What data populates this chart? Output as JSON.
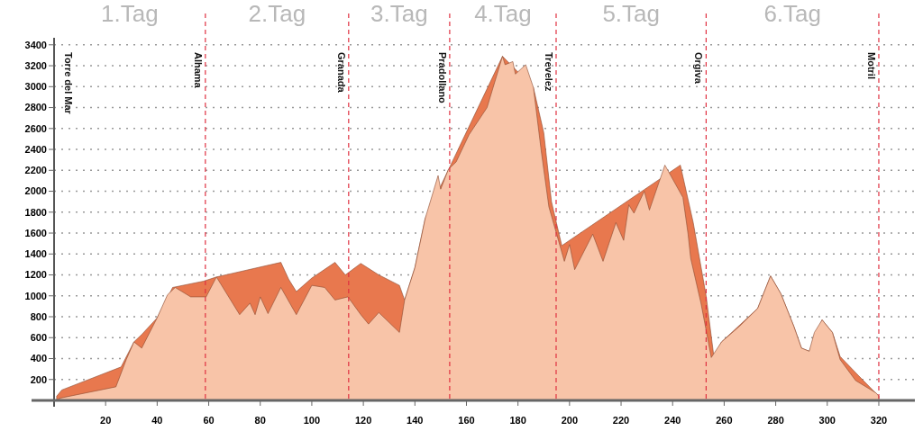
{
  "chart_data": {
    "type": "area",
    "xlim": [
      0,
      334
    ],
    "ylim": [
      0,
      3450
    ],
    "xticks": [
      20,
      40,
      60,
      80,
      100,
      120,
      140,
      160,
      180,
      200,
      220,
      240,
      260,
      280,
      300,
      320
    ],
    "yticks": [
      200,
      400,
      600,
      800,
      1000,
      1200,
      1400,
      1600,
      1800,
      2000,
      2200,
      2400,
      2600,
      2800,
      3000,
      3200,
      3400
    ],
    "grid": "y",
    "series": [
      {
        "color": "#e8784e",
        "x": [
          1,
          3,
          26,
          31,
          34,
          40,
          46,
          58,
          63,
          88,
          91,
          94,
          100,
          109,
          113,
          119,
          126,
          134,
          136,
          140,
          144,
          174,
          186,
          190,
          193,
          197,
          243,
          248,
          253,
          256,
          259,
          273,
          278,
          282,
          287,
          290,
          293,
          298,
          302,
          305,
          312,
          320
        ],
        "values": [
          40,
          100,
          320,
          560,
          630,
          790,
          1080,
          1140,
          1180,
          1320,
          1160,
          1040,
          1170,
          1320,
          1200,
          1310,
          1200,
          1100,
          960,
          1270,
          1740,
          3290,
          2990,
          2560,
          1900,
          1480,
          2250,
          1700,
          1000,
          420,
          560,
          880,
          1190,
          1020,
          710,
          500,
          470,
          770,
          650,
          420,
          240,
          40
        ]
      },
      {
        "color": "#f8c4a8",
        "x": [
          2,
          24,
          28,
          31,
          34,
          40,
          44,
          47,
          53,
          59,
          63,
          72,
          76,
          78,
          80,
          83,
          88,
          94,
          100,
          105,
          109,
          114,
          119,
          122,
          126,
          134,
          136,
          140,
          144,
          149,
          150,
          153,
          156,
          161,
          168,
          174,
          175,
          178,
          179,
          183,
          186,
          189,
          192,
          195,
          198,
          200,
          202,
          209,
          213,
          218,
          221,
          223,
          225,
          229,
          231,
          237,
          244,
          246,
          247,
          251,
          255,
          259,
          266,
          273,
          278,
          282,
          287,
          290,
          293,
          295,
          298,
          302,
          305,
          311,
          319,
          320
        ],
        "values": [
          20,
          130,
          390,
          560,
          500,
          790,
          1010,
          1080,
          990,
          990,
          1180,
          820,
          930,
          820,
          990,
          830,
          1080,
          820,
          1100,
          1080,
          960,
          990,
          820,
          730,
          840,
          650,
          960,
          1270,
          1740,
          2150,
          2020,
          2210,
          2280,
          2540,
          2800,
          3290,
          3210,
          3240,
          3120,
          3210,
          2990,
          2390,
          1850,
          1590,
          1330,
          1490,
          1250,
          1590,
          1330,
          1700,
          1530,
          1870,
          1790,
          2000,
          1820,
          2250,
          1940,
          1590,
          1360,
          930,
          410,
          560,
          710,
          880,
          1190,
          1020,
          710,
          500,
          470,
          650,
          770,
          650,
          390,
          190,
          70,
          40
        ]
      }
    ],
    "ref_lines": [
      {
        "axis": "x",
        "value": 58.7,
        "label": "Alhama",
        "color": "#e03040",
        "line_style": "dashed"
      },
      {
        "axis": "x",
        "value": 114.3,
        "label": "Granada",
        "color": "#e03040",
        "line_style": "dashed"
      },
      {
        "axis": "x",
        "value": 153.5,
        "label": "Pradollano",
        "color": "#e03040",
        "line_style": "dashed"
      },
      {
        "axis": "x",
        "value": 194.8,
        "label": "Trevelez",
        "color": "#e03040",
        "line_style": "dashed"
      },
      {
        "axis": "x",
        "value": 253,
        "label": "Orgiva",
        "color": "#e03040",
        "line_style": "dashed"
      },
      {
        "axis": "x",
        "value": 320,
        "label": "Motril",
        "color": "#e03040",
        "line_style": "dashed"
      }
    ],
    "annotations": [
      "Torre del Mar",
      "1.Tag",
      "2.Tag",
      "3.Tag",
      "4.Tag",
      "5.Tag",
      "6.Tag"
    ]
  }
}
